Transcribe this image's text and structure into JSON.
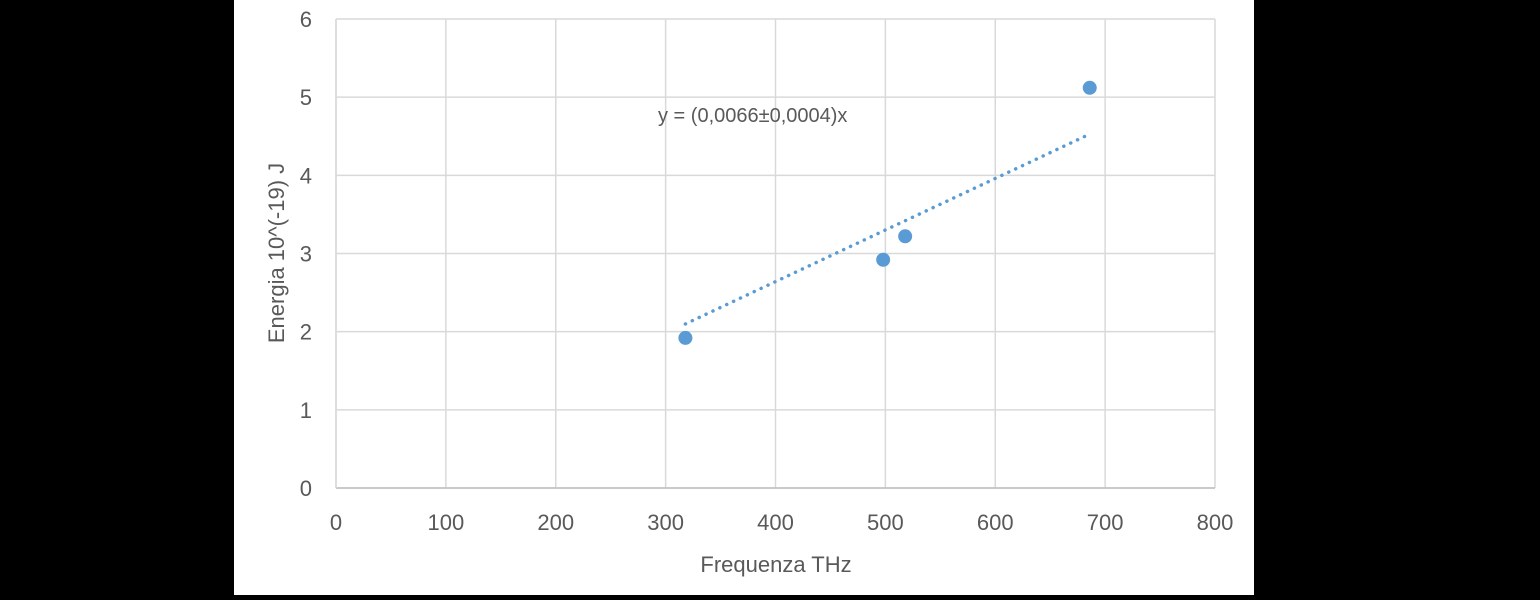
{
  "chart_data": {
    "type": "scatter",
    "title": "",
    "xlabel": "Frequenza THz",
    "ylabel": "Energia 10^(-19) J",
    "xlim": [
      0,
      800
    ],
    "ylim": [
      0,
      6
    ],
    "xticks": [
      0,
      100,
      200,
      300,
      400,
      500,
      600,
      700,
      800
    ],
    "yticks": [
      0,
      1,
      2,
      3,
      4,
      5,
      6
    ],
    "grid": true,
    "legend": null,
    "series": [
      {
        "name": "Energia",
        "color": "#5B9BD5",
        "x": [
          318,
          498,
          518,
          686
        ],
        "y": [
          1.92,
          2.92,
          3.22,
          5.12
        ]
      }
    ],
    "trendline": {
      "type": "linear-through-origin",
      "slope": 0.0066,
      "x_range": [
        318,
        686
      ],
      "style": "dotted",
      "color": "#5B9BD5",
      "label": "y = (0,0066±0,0004)x"
    },
    "annotations": [
      "y = (0,0066±0,0004)x"
    ]
  },
  "labels": {
    "xlabel": "Frequenza THz",
    "ylabel": "Energia 10^(-19) J",
    "equation": "y = (0,0066±0,0004)x"
  }
}
